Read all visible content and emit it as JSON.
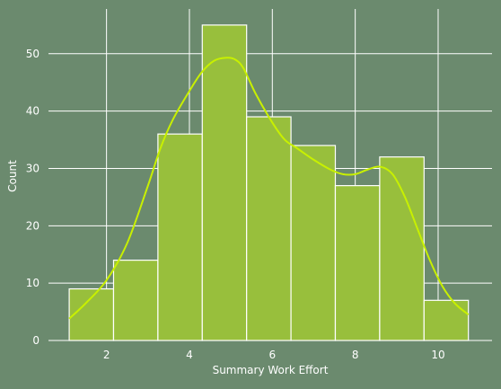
{
  "chart_data": {
    "type": "bar",
    "subtype": "histogram-with-kde",
    "xlabel": "Summary Work Effort",
    "ylabel": "Count",
    "xlim": [
      0.6,
      11.3
    ],
    "ylim": [
      0,
      57.8
    ],
    "xticks": [
      2,
      4,
      6,
      8,
      10
    ],
    "yticks": [
      0,
      10,
      20,
      30,
      40,
      50
    ],
    "grid": true,
    "bins": [
      {
        "x0": 1.1,
        "x1": 2.17,
        "count": 9
      },
      {
        "x0": 2.17,
        "x1": 3.24,
        "count": 14
      },
      {
        "x0": 3.24,
        "x1": 4.31,
        "count": 36
      },
      {
        "x0": 4.31,
        "x1": 5.38,
        "count": 55
      },
      {
        "x0": 5.38,
        "x1": 6.45,
        "count": 39
      },
      {
        "x0": 6.45,
        "x1": 7.52,
        "count": 34
      },
      {
        "x0": 7.52,
        "x1": 8.59,
        "count": 27
      },
      {
        "x0": 8.59,
        "x1": 9.66,
        "count": 32
      },
      {
        "x0": 9.66,
        "x1": 10.73,
        "count": 7
      }
    ],
    "kde": {
      "x": [
        1.1,
        1.5,
        2.0,
        2.5,
        3.0,
        3.3,
        3.6,
        4.0,
        4.3,
        4.6,
        4.9,
        5.1,
        5.3,
        5.6,
        6.0,
        6.3,
        6.6,
        7.0,
        7.4,
        7.7,
        8.0,
        8.3,
        8.6,
        8.9,
        9.2,
        9.5,
        9.8,
        10.1,
        10.4,
        10.73
      ],
      "y": [
        3.8,
        6.5,
        10.5,
        17.0,
        27.0,
        33.5,
        38.5,
        43.5,
        46.8,
        48.8,
        49.3,
        49.0,
        47.5,
        43.0,
        38.0,
        35.0,
        33.5,
        31.5,
        29.8,
        29.0,
        29.0,
        29.8,
        30.3,
        29.0,
        25.0,
        19.5,
        14.0,
        9.5,
        6.5,
        4.5
      ]
    },
    "colors": {
      "background": "#6b8a6e",
      "bar_fill": "#98bf3c",
      "bar_edge": "#ffffff",
      "kde_line": "#c8f000",
      "grid": "#ffffff"
    }
  }
}
